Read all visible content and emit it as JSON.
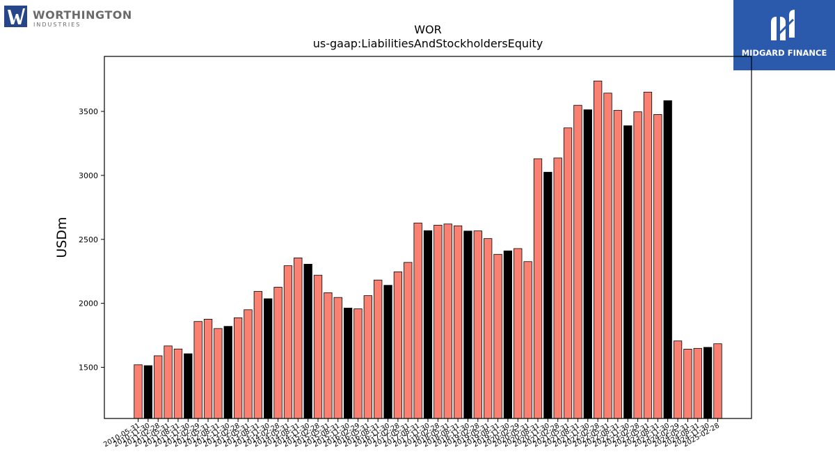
{
  "brand": {
    "left_name": "WORTHINGTON",
    "left_sub": "INDUSTRIES",
    "right_name": "MIDGARD FINANCE",
    "colors": {
      "left_mark": "#27468a",
      "right_bg": "#2b5aad"
    }
  },
  "chart_data": {
    "type": "bar",
    "title": "WOR",
    "subtitle": "us-gaap:LiabilitiesAndStockholdersEquity",
    "xlabel": "",
    "ylabel": "USDm",
    "ylim": [
      1100,
      3930
    ],
    "yticks": [
      1500,
      2000,
      2500,
      3000,
      3500
    ],
    "grid": false,
    "legend": "none",
    "colors": {
      "default": "#fa8072",
      "highlight": "#000000",
      "edge": "#000000"
    },
    "categories": [
      "2010-05-31",
      "2010-11-30",
      "2011-02-28",
      "2011-05-31",
      "2011-08-31",
      "2011-11-30",
      "2012-02-29",
      "2012-05-31",
      "2012-08-31",
      "2012-11-30",
      "2013-02-28",
      "2013-05-31",
      "2013-08-31",
      "2013-11-30",
      "2014-02-28",
      "2014-05-31",
      "2014-08-31",
      "2014-11-30",
      "2015-02-28",
      "2015-05-31",
      "2015-08-31",
      "2015-11-30",
      "2016-02-29",
      "2016-05-31",
      "2016-08-31",
      "2016-11-30",
      "2017-02-28",
      "2017-05-31",
      "2017-08-31",
      "2017-11-30",
      "2018-02-28",
      "2018-05-31",
      "2018-08-31",
      "2018-11-30",
      "2019-02-28",
      "2019-05-31",
      "2019-08-31",
      "2019-11-30",
      "2020-02-29",
      "2020-05-31",
      "2020-08-31",
      "2020-11-30",
      "2021-02-28",
      "2021-05-31",
      "2021-08-31",
      "2021-11-30",
      "2022-02-28",
      "2022-05-31",
      "2022-08-31",
      "2022-11-30",
      "2023-02-28",
      "2023-05-31",
      "2023-08-31",
      "2023-11-30",
      "2024-02-29",
      "2024-05-31",
      "2024-08-31",
      "2024-11-30",
      "2025-02-28"
    ],
    "values": [
      1520,
      1513,
      1590,
      1667,
      1643,
      1606,
      1858,
      1876,
      1803,
      1820,
      1887,
      1950,
      2093,
      2036,
      2126,
      2294,
      2355,
      2306,
      2220,
      2083,
      2046,
      1963,
      1957,
      2060,
      2182,
      2141,
      2246,
      2320,
      2628,
      2568,
      2611,
      2620,
      2606,
      2565,
      2566,
      2506,
      2383,
      2410,
      2428,
      2326,
      3130,
      3025,
      3136,
      3371,
      3548,
      3513,
      3738,
      3643,
      3508,
      3388,
      3497,
      3651,
      3476,
      3584,
      1706,
      1642,
      1648,
      1656,
      1684
    ],
    "highlight": [
      false,
      true,
      false,
      false,
      false,
      true,
      false,
      false,
      false,
      true,
      false,
      false,
      false,
      true,
      false,
      false,
      false,
      true,
      false,
      false,
      false,
      true,
      false,
      false,
      false,
      true,
      false,
      false,
      false,
      true,
      false,
      false,
      false,
      true,
      false,
      false,
      false,
      true,
      false,
      false,
      false,
      true,
      false,
      false,
      false,
      true,
      false,
      false,
      false,
      true,
      false,
      false,
      false,
      true,
      false,
      false,
      false,
      true,
      false
    ]
  }
}
